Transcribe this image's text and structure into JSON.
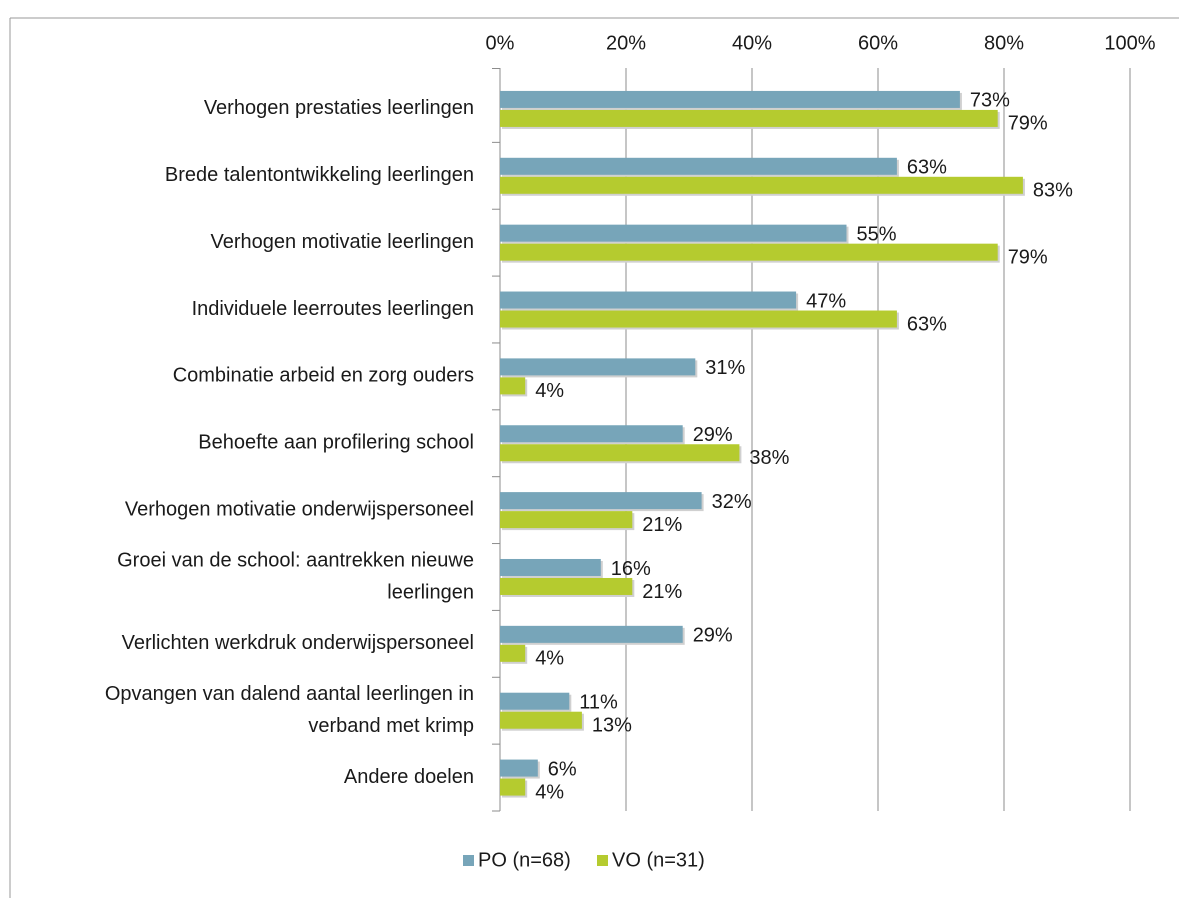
{
  "chart_data": {
    "type": "hbar",
    "categories": [
      [
        "Verhogen prestaties leerlingen"
      ],
      [
        "Brede talentontwikkeling leerlingen"
      ],
      [
        "Verhogen motivatie leerlingen"
      ],
      [
        "Individuele leerroutes leerlingen"
      ],
      [
        "Combinatie arbeid en zorg ouders"
      ],
      [
        "Behoefte aan profilering school"
      ],
      [
        "Verhogen motivatie onderwijspersoneel"
      ],
      [
        "Groei van de school: aantrekken nieuwe",
        "leerlingen"
      ],
      [
        "Verlichten werkdruk onderwijspersoneel"
      ],
      [
        "Opvangen van dalend aantal leerlingen in",
        "verband met krimp"
      ],
      [
        "Andere doelen"
      ]
    ],
    "series": [
      {
        "name": "PO (n=68)",
        "color": "#77a5b9",
        "values": [
          73,
          63,
          55,
          47,
          31,
          29,
          32,
          16,
          29,
          11,
          6
        ],
        "value_labels": [
          "73%",
          "63%",
          "55%",
          "47%",
          "31%",
          "29%",
          "32%",
          "16%",
          "29%",
          "11%",
          "6%"
        ]
      },
      {
        "name": "VO (n=31)",
        "color": "#b5cb2f",
        "values": [
          79,
          83,
          79,
          63,
          4,
          38,
          21,
          21,
          4,
          13,
          4
        ],
        "value_labels": [
          "79%",
          "83%",
          "79%",
          "63%",
          "4%",
          "38%",
          "21%",
          "21%",
          "4%",
          "13%",
          "4%"
        ]
      }
    ],
    "xlim": [
      0,
      100
    ],
    "xticks": [
      {
        "value": 0,
        "label": "0%"
      },
      {
        "value": 20,
        "label": "20%"
      },
      {
        "value": 40,
        "label": "40%"
      },
      {
        "value": 60,
        "label": "60%"
      },
      {
        "value": 80,
        "label": "80%"
      },
      {
        "value": 100,
        "label": "100%"
      }
    ],
    "grid": true,
    "legend": "bottom"
  }
}
